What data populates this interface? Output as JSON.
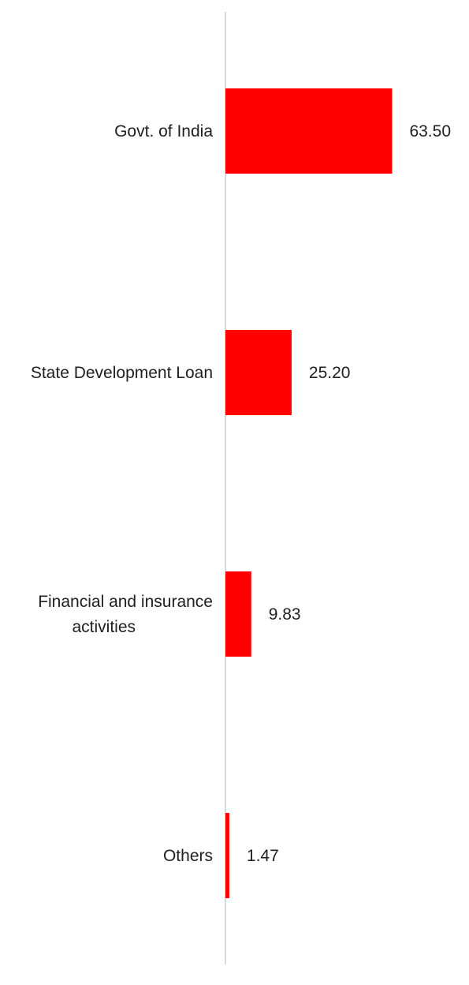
{
  "chart_data": {
    "type": "bar",
    "orientation": "horizontal",
    "categories": [
      "Govt. of India",
      "State Development Loan",
      "Financial and insurance activities",
      "Others"
    ],
    "category_lines": [
      [
        "Govt. of India"
      ],
      [
        "State Development Loan"
      ],
      [
        "Financial and insurance",
        "activities"
      ],
      [
        "Others"
      ]
    ],
    "values": [
      63.5,
      25.2,
      9.83,
      1.47
    ],
    "value_labels": [
      "63.50",
      "25.20",
      "9.83",
      "1.47"
    ],
    "xlim": [
      0,
      100
    ],
    "grid": false,
    "legend": "none",
    "bar_color": "#ff0000",
    "axis_color": "#d9d9d9",
    "text_color": "#202020"
  }
}
